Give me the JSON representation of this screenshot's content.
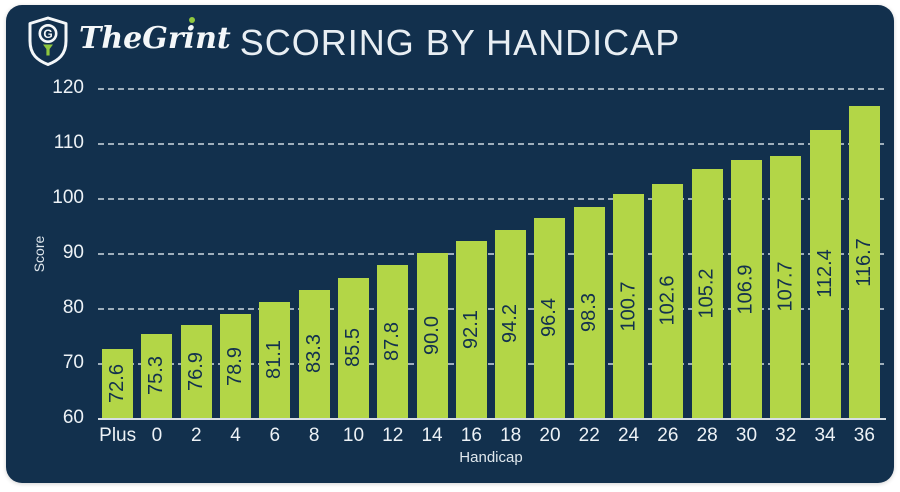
{
  "brand": {
    "name_pre": "TheGr",
    "name_i": "i",
    "name_post": "nt",
    "tee_color": "#8fc73e"
  },
  "header": {
    "title": "SCORING BY HANDICAP"
  },
  "chart_data": {
    "type": "bar",
    "title": "SCORING BY HANDICAP",
    "xlabel": "Handicap",
    "ylabel": "Score",
    "categories": [
      "Plus",
      "0",
      "2",
      "4",
      "6",
      "8",
      "10",
      "12",
      "14",
      "16",
      "18",
      "20",
      "22",
      "24",
      "26",
      "28",
      "30",
      "32",
      "34",
      "36"
    ],
    "values": [
      72.6,
      75.3,
      76.9,
      78.9,
      81.1,
      83.3,
      85.5,
      87.8,
      90.0,
      92.1,
      94.2,
      96.4,
      98.3,
      100.7,
      102.6,
      105.2,
      106.9,
      107.7,
      112.4,
      116.7
    ],
    "value_labels": [
      "72.6",
      "75.3",
      "76.9",
      "78.9",
      "81.1",
      "83.3",
      "85.5",
      "87.8",
      "90.0",
      "92.1",
      "94.2",
      "96.4",
      "98.3",
      "100.7",
      "102.6",
      "105.2",
      "106.9",
      "107.7",
      "112.4",
      "116.7"
    ],
    "ylim": [
      60,
      120
    ],
    "yticks": [
      60,
      70,
      80,
      90,
      100,
      110,
      120
    ],
    "grid": "horizontal-dashed",
    "legend": "none",
    "bar_color": "#b3d647",
    "bar_label_color": "#13314e",
    "background_color": "#12304d",
    "axis_text_color": "#edf2f6"
  }
}
